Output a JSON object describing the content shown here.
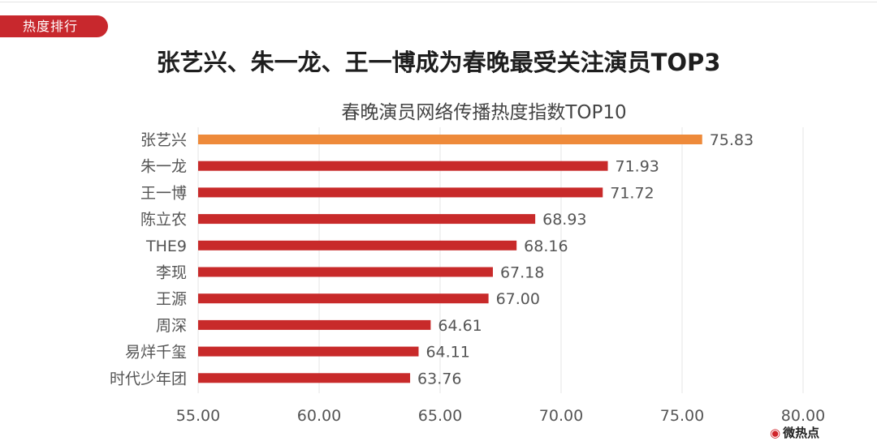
{
  "tag": "热度排行",
  "headline": "张艺兴、朱一龙、王一博成为春晚最受关注演员TOP3",
  "watermark": "微热点",
  "watermark_icon": "weibo-icon",
  "colors": {
    "tag": "#c8282d",
    "bar": "#c82a2a",
    "highlight": "#ee8a3a",
    "grid": "#e6e6e6",
    "label": "#555555"
  },
  "chart_data": {
    "type": "bar",
    "orientation": "horizontal",
    "title": "春晚演员网络传播热度指数TOP10",
    "categories": [
      "张艺兴",
      "朱一龙",
      "王一博",
      "陈立农",
      "THE9",
      "李现",
      "王源",
      "周深",
      "易烊千玺",
      "时代少年团"
    ],
    "values": [
      75.83,
      71.93,
      71.72,
      68.93,
      68.16,
      67.18,
      67.0,
      64.61,
      64.11,
      63.76
    ],
    "value_labels": [
      "75.83",
      "71.93",
      "71.72",
      "68.93",
      "68.16",
      "67.18",
      "67.00",
      "64.61",
      "64.11",
      "63.76"
    ],
    "highlight_index": 0,
    "xlim": [
      55,
      80
    ],
    "xticks": [
      55,
      60,
      65,
      70,
      75,
      80
    ],
    "xtick_labels": [
      "55.00",
      "60.00",
      "65.00",
      "70.00",
      "75.00",
      "80.00"
    ],
    "grid": true,
    "legend": false
  }
}
